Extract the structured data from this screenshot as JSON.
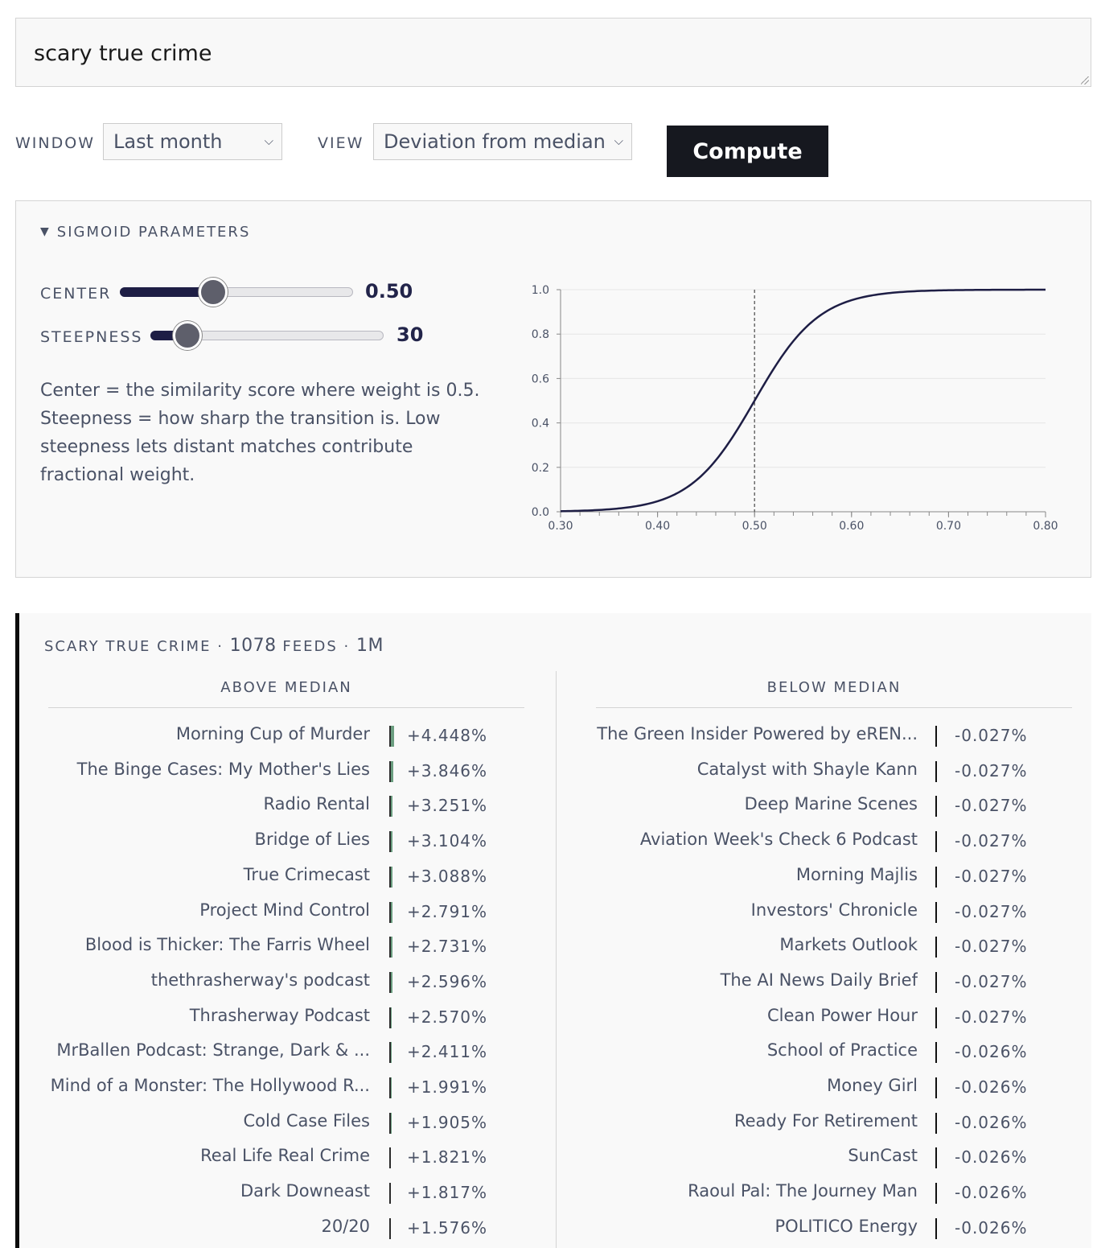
{
  "query": {
    "value": "scary true crime"
  },
  "controls": {
    "window_label": "WINDOW",
    "window_value": "Last month",
    "view_label": "VIEW",
    "view_value": "Deviation from median",
    "compute_label": "Compute"
  },
  "sigmoid": {
    "header": "SIGMOID PARAMETERS",
    "center_label": "CENTER",
    "center_value": "0.50",
    "center_fraction": 0.4,
    "steepness_label": "STEEPNESS",
    "steepness_value": "30",
    "steepness_fraction": 0.16,
    "description": "Center = the similarity score where weight is 0.5. Steepness = how sharp the transition is. Low steepness lets distant matches contribute fractional weight.",
    "colors": {
      "curve": "#1e1e45",
      "axis": "#888888",
      "grid": "#e6e6e6"
    }
  },
  "chart_data": {
    "type": "line",
    "function": "sigmoid",
    "center": 0.5,
    "steepness": 30,
    "xlim": [
      0.3,
      0.8
    ],
    "ylim": [
      0.0,
      1.0
    ],
    "x_ticks": [
      "0.30",
      "0.40",
      "0.50",
      "0.60",
      "0.70",
      "0.80"
    ],
    "y_ticks": [
      "0.0",
      "0.2",
      "0.4",
      "0.6",
      "0.8",
      "1.0"
    ],
    "vertical_marker_x": 0.5,
    "grid": true
  },
  "results": {
    "query_label": "SCARY TRUE CRIME",
    "sep": "·",
    "feed_count": "1078",
    "feeds_label": "FEEDS",
    "window_short": "1M",
    "above_title": "ABOVE MEDIAN",
    "below_title": "BELOW MEDIAN",
    "colors": {
      "above_bar": "#6b9e80",
      "below_bar": "#111111"
    },
    "above": [
      {
        "name": "Morning Cup of Murder",
        "pct": "+4.448%"
      },
      {
        "name": "The Binge Cases: My Mother's Lies",
        "pct": "+3.846%"
      },
      {
        "name": "Radio Rental",
        "pct": "+3.251%"
      },
      {
        "name": "Bridge of Lies",
        "pct": "+3.104%"
      },
      {
        "name": "True Crimecast",
        "pct": "+3.088%"
      },
      {
        "name": "Project Mind Control",
        "pct": "+2.791%"
      },
      {
        "name": "Blood is Thicker: The Farris Wheel",
        "pct": "+2.731%"
      },
      {
        "name": "thethrasherway's podcast",
        "pct": "+2.596%"
      },
      {
        "name": "Thrasherway Podcast",
        "pct": "+2.570%"
      },
      {
        "name": "MrBallen Podcast: Strange, Dark & ...",
        "pct": "+2.411%"
      },
      {
        "name": "Mind of a Monster: The Hollywood R...",
        "pct": "+1.991%"
      },
      {
        "name": "Cold Case Files",
        "pct": "+1.905%"
      },
      {
        "name": "Real Life Real Crime",
        "pct": "+1.821%"
      },
      {
        "name": "Dark Downeast",
        "pct": "+1.817%"
      },
      {
        "name": "20/20",
        "pct": "+1.576%"
      }
    ],
    "below": [
      {
        "name": "The Green Insider Powered by eREN...",
        "pct": "-0.027%"
      },
      {
        "name": "Catalyst with Shayle Kann",
        "pct": "-0.027%"
      },
      {
        "name": "Deep Marine Scenes",
        "pct": "-0.027%"
      },
      {
        "name": "Aviation Week's Check 6 Podcast",
        "pct": "-0.027%"
      },
      {
        "name": "Morning Majlis",
        "pct": "-0.027%"
      },
      {
        "name": "Investors' Chronicle",
        "pct": "-0.027%"
      },
      {
        "name": "Markets Outlook",
        "pct": "-0.027%"
      },
      {
        "name": "The AI News Daily Brief",
        "pct": "-0.027%"
      },
      {
        "name": "Clean Power Hour",
        "pct": "-0.027%"
      },
      {
        "name": "School of Practice",
        "pct": "-0.026%"
      },
      {
        "name": "Money Girl",
        "pct": "-0.026%"
      },
      {
        "name": "Ready For Retirement",
        "pct": "-0.026%"
      },
      {
        "name": "SunCast",
        "pct": "-0.026%"
      },
      {
        "name": "Raoul Pal: The Journey Man",
        "pct": "-0.026%"
      },
      {
        "name": "POLITICO Energy",
        "pct": "-0.026%"
      }
    ]
  }
}
